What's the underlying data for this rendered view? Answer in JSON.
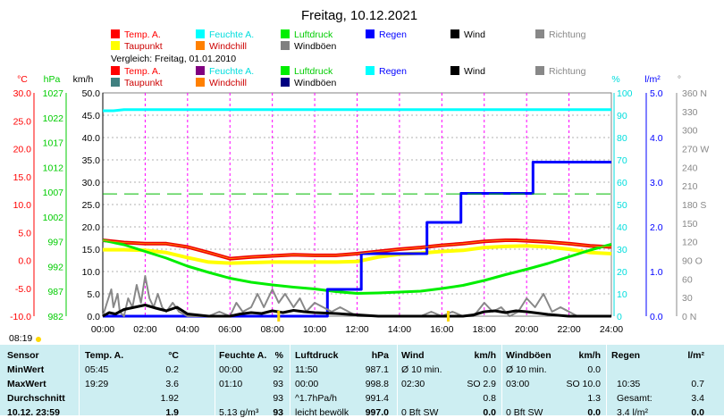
{
  "title": "Freitag, 10.12.2021",
  "legend_main": [
    {
      "label": "Temp. A.",
      "color": "#ff0000",
      "text_color": "#ff0000"
    },
    {
      "label": "Feuchte A.",
      "color": "#00ffff",
      "text_color": "#00dddd"
    },
    {
      "label": "Luftdruck",
      "color": "#00ee00",
      "text_color": "#00cc00"
    },
    {
      "label": "Regen",
      "color": "#0000ff",
      "text_color": "#0000ff"
    },
    {
      "label": "Wind",
      "color": "#000000",
      "text_color": "#000000"
    },
    {
      "label": "Richtung",
      "color": "#888888",
      "text_color": "#888888"
    },
    {
      "label": "Taupunkt",
      "color": "#ffff00",
      "text_color": "#cc0000"
    },
    {
      "label": "Windchill",
      "color": "#ff8000",
      "text_color": "#cc0000"
    },
    {
      "label": "Windböen",
      "color": "#808080",
      "text_color": "#000000"
    }
  ],
  "compare_label": "Vergleich: Freitag, 01.01.2010",
  "legend_compare": [
    {
      "label": "Temp. A.",
      "color": "#ff0000",
      "text_color": "#ff0000"
    },
    {
      "label": "Feuchte A.",
      "color": "#800080",
      "text_color": "#00dddd"
    },
    {
      "label": "Luftdruck",
      "color": "#00ee00",
      "text_color": "#00cc00"
    },
    {
      "label": "Regen",
      "color": "#00ffff",
      "text_color": "#0000ff"
    },
    {
      "label": "Wind",
      "color": "#000000",
      "text_color": "#000000"
    },
    {
      "label": "Richtung",
      "color": "#888888",
      "text_color": "#888888"
    },
    {
      "label": "Taupunkt",
      "color": "#408080",
      "text_color": "#cc0000"
    },
    {
      "label": "Windchill",
      "color": "#ff8000",
      "text_color": "#cc0000"
    },
    {
      "label": "Windböen",
      "color": "#000080",
      "text_color": "#000000"
    }
  ],
  "axis_units": {
    "temp": "°C",
    "hpa": "hPa",
    "kmh": "km/h",
    "pct": "%",
    "lm2": "l/m²",
    "deg": "°"
  },
  "time_marker": "08:19",
  "chart_data": {
    "type": "line",
    "x_ticks": [
      "00:00",
      "02:00",
      "04:00",
      "06:00",
      "08:00",
      "10:00",
      "12:00",
      "14:00",
      "16:00",
      "18:00",
      "20:00",
      "22:00",
      "24:00"
    ],
    "x_range": [
      0,
      24
    ],
    "temp_ticks": [
      "30.0",
      "25.0",
      "20.0",
      "15.0",
      "10.0",
      "5.0",
      "0.0",
      "-5.0",
      "-10.0"
    ],
    "temp_range": [
      -10,
      30
    ],
    "hpa_ticks": [
      "1027",
      "1022",
      "1017",
      "1012",
      "1007",
      "1002",
      "997",
      "992",
      "987",
      "982"
    ],
    "hpa_range": [
      982,
      1032
    ],
    "kmh_ticks": [
      "50.0",
      "45.0",
      "40.0",
      "35.0",
      "30.0",
      "25.0",
      "20.0",
      "15.0",
      "10.0",
      "5.0",
      "0.0"
    ],
    "kmh_range": [
      0,
      50
    ],
    "pct_ticks": [
      "100",
      "90",
      "80",
      "70",
      "60",
      "50",
      "40",
      "30",
      "20",
      "10",
      "0"
    ],
    "pct_range": [
      0,
      100
    ],
    "lm2_ticks": [
      "5.0",
      "4.0",
      "3.0",
      "2.0",
      "1.0",
      "0.0"
    ],
    "lm2_range": [
      0,
      5
    ],
    "deg_ticks": [
      "360 N",
      "330",
      "300",
      "270 W",
      "240",
      "210",
      "180 S",
      "150",
      "120",
      "90 O",
      "60",
      "30",
      "0 N"
    ],
    "deg_range": [
      0,
      360
    ],
    "series": [
      {
        "name": "Temp. A.",
        "axis": "temp",
        "color": "#ee0000",
        "width": 4,
        "x": [
          0,
          1,
          2,
          3,
          4,
          5,
          6,
          7,
          8,
          9,
          10,
          11,
          12,
          13,
          14,
          15,
          16,
          17,
          18,
          19,
          19.5,
          20,
          21,
          22,
          23,
          24
        ],
        "y": [
          3.6,
          3.2,
          3.0,
          3.0,
          2.4,
          1.4,
          0.3,
          0.6,
          0.8,
          1.0,
          0.9,
          0.9,
          1.2,
          1.6,
          2.0,
          2.3,
          2.7,
          3.0,
          3.4,
          3.6,
          3.6,
          3.5,
          3.3,
          3.0,
          2.6,
          2.4
        ]
      },
      {
        "name": "Taupunkt",
        "axis": "temp",
        "color": "#ffff00",
        "width": 4,
        "x": [
          0,
          1,
          2,
          3,
          4,
          5,
          6,
          7,
          8,
          9,
          10,
          11,
          12,
          13,
          14,
          15,
          16,
          17,
          18,
          19,
          20,
          21,
          22,
          23,
          24
        ],
        "y": [
          1.9,
          1.9,
          1.8,
          1.4,
          0.5,
          -0.3,
          -0.5,
          -0.4,
          -0.3,
          -0.3,
          -0.3,
          -0.3,
          -0.2,
          0.6,
          1.1,
          1.3,
          1.6,
          1.8,
          2.3,
          2.5,
          2.6,
          2.4,
          2.0,
          1.4,
          1.2
        ]
      },
      {
        "name": "Feuchte A.",
        "axis": "pct",
        "color": "#00ffff",
        "width": 3,
        "x": [
          0,
          0.5,
          1,
          2,
          4,
          6,
          8,
          10,
          12,
          14,
          16,
          18,
          20,
          22,
          24
        ],
        "y": [
          92,
          92,
          92.5,
          92.5,
          92.5,
          92.5,
          92.5,
          92.5,
          92.5,
          92.5,
          92.5,
          92.5,
          92.5,
          92.5,
          92.5
        ]
      },
      {
        "name": "Luftdruck",
        "axis": "hpa",
        "color": "#00ee00",
        "width": 3,
        "x": [
          0,
          1,
          2,
          3,
          4,
          5,
          6,
          7,
          8,
          9,
          10,
          11,
          12,
          13,
          14,
          15,
          16,
          17,
          18,
          19,
          20,
          21,
          22,
          23,
          24
        ],
        "y": [
          999.0,
          998.0,
          996.5,
          995.0,
          993.2,
          991.8,
          990.5,
          989.6,
          989.0,
          988.5,
          988.1,
          987.5,
          987.1,
          987.2,
          987.4,
          987.6,
          988.2,
          988.9,
          990.0,
          991.3,
          992.5,
          993.8,
          995.3,
          996.8,
          998.1
        ]
      },
      {
        "name": "Regen",
        "axis": "lm2",
        "color": "#0000ff",
        "width": 3,
        "step": true,
        "x": [
          0,
          10.6,
          10.6,
          12.2,
          12.2,
          15.3,
          15.3,
          16.9,
          16.9,
          18.0,
          18.0,
          20.3,
          20.3,
          24
        ],
        "y": [
          0,
          0,
          0.6,
          0.6,
          1.4,
          1.4,
          2.1,
          2.1,
          2.75,
          2.75,
          2.75,
          2.75,
          3.45,
          3.45
        ]
      },
      {
        "name": "Windböen",
        "axis": "kmh",
        "color": "#888888",
        "width": 2,
        "x": [
          0,
          0.2,
          0.4,
          0.5,
          0.7,
          0.8,
          1.0,
          1.2,
          1.4,
          1.6,
          1.8,
          2.0,
          2.2,
          2.4,
          2.6,
          2.8,
          3.0,
          3.3,
          3.6,
          4.0,
          4.5,
          5.0,
          5.5,
          6.0,
          6.3,
          6.6,
          7.0,
          7.3,
          7.6,
          8.0,
          8.3,
          8.6,
          9.0,
          9.3,
          9.6,
          10.0,
          10.4,
          10.8,
          11.2,
          11.6,
          12.0,
          12.5,
          13.0,
          13.5,
          14.0,
          14.5,
          15.0,
          15.5,
          16.0,
          16.5,
          17.0,
          17.5,
          18.0,
          18.4,
          18.8,
          19.2,
          19.6,
          20.0,
          20.4,
          20.8,
          21.2,
          21.6,
          22.0,
          22.4,
          22.8,
          23.2,
          23.6,
          24
        ],
        "y": [
          0,
          3,
          6,
          2,
          5,
          1,
          0,
          4,
          2,
          7,
          3,
          9,
          4,
          2,
          5,
          2,
          1,
          3,
          1,
          0,
          0,
          0,
          1,
          0,
          3,
          1,
          2,
          5,
          2,
          6,
          3,
          5,
          2,
          4,
          1,
          3,
          2,
          1,
          2,
          1,
          0,
          0,
          0,
          0,
          0,
          0,
          0,
          1,
          0,
          1,
          0,
          0,
          3,
          1,
          2,
          0,
          1,
          4,
          2,
          5,
          1,
          2,
          1,
          0,
          0,
          0,
          0,
          0
        ]
      },
      {
        "name": "Wind",
        "axis": "kmh",
        "color": "#000000",
        "width": 3,
        "x": [
          0,
          0.3,
          0.6,
          1,
          1.5,
          2,
          2.5,
          3,
          3.5,
          4,
          5,
          6,
          6.5,
          7,
          7.5,
          8,
          8.5,
          9,
          9.5,
          10,
          11,
          12,
          13,
          14,
          15,
          16,
          17,
          17.5,
          18,
          18.5,
          19,
          19.5,
          20,
          21,
          22,
          23,
          24
        ],
        "y": [
          0,
          0.8,
          0.5,
          1.5,
          2.0,
          2.5,
          1.8,
          1.2,
          2.0,
          0.5,
          0,
          0,
          0.5,
          0.8,
          0.6,
          1.2,
          0.8,
          1.3,
          1.0,
          0.8,
          0.6,
          0.3,
          0,
          0,
          0,
          0,
          0,
          0.3,
          1.0,
          1.2,
          0.8,
          1.2,
          1.0,
          0.4,
          0,
          0,
          0
        ]
      },
      {
        "name": "Windchill",
        "axis": "temp",
        "color": "#ff8000",
        "width": 1,
        "x": [
          0,
          1,
          2,
          3,
          4,
          5,
          6,
          7,
          8,
          9,
          10,
          11,
          12,
          13,
          14,
          15,
          16,
          17,
          18,
          19,
          20,
          21,
          22,
          23,
          24
        ],
        "y": [
          3.6,
          3.2,
          3.0,
          3.0,
          2.4,
          1.4,
          0.3,
          0.6,
          0.8,
          1.0,
          0.9,
          0.9,
          1.2,
          1.6,
          2.0,
          2.3,
          2.7,
          3.0,
          3.4,
          3.6,
          3.5,
          3.3,
          3.0,
          2.6,
          2.4
        ]
      },
      {
        "name": "Vergleich Temp. A.",
        "axis": "temp",
        "color": "#00bb00",
        "width": 1,
        "dash": "16,8",
        "x": [
          0,
          24
        ],
        "y": [
          11.9,
          11.9
        ]
      }
    ]
  },
  "table": {
    "headers": [
      "Sensor",
      "Temp. A.",
      "°C",
      "Feuchte A.",
      "%",
      "Luftdruck",
      "hPa",
      "Wind",
      "km/h",
      "Windböen",
      "km/h",
      "Regen",
      "l/m²"
    ],
    "rows": [
      {
        "label": "MinWert",
        "temp_time": "05:45",
        "temp": "0.2",
        "hum_time": "00:00",
        "hum": "92",
        "baro_time": "11:50",
        "baro": "987.1",
        "wind_time": "Ø 10 min.",
        "wind": "0.0",
        "gust_time": "Ø 10 min.",
        "gust": "0.0",
        "rain_time": "",
        "rain": ""
      },
      {
        "label": "MaxWert",
        "temp_time": "19:29",
        "temp": "3.6",
        "hum_time": "01:10",
        "hum": "93",
        "baro_time": "00:00",
        "baro": "998.8",
        "wind_time": "02:30",
        "wind": "SO 2.9",
        "gust_time": "03:00",
        "gust": "SO 10.0",
        "rain_time": "10:35",
        "rain": "0.7"
      },
      {
        "label": "Durchschnitt",
        "temp_time": "",
        "temp": "1.92",
        "hum_time": "",
        "hum": "93",
        "baro_time": "^1.7hPa/h",
        "baro": "991.4",
        "wind_time": "",
        "wind": "0.8",
        "gust_time": "",
        "gust": "1.3",
        "rain_time": "Gesamt:",
        "rain": "3.4"
      },
      {
        "label": "10.12. 23:59",
        "temp_time": "",
        "temp": "1.9",
        "hum_time": "5.13 g/m³",
        "hum": "93",
        "baro_time": "leicht bewölk",
        "baro": "997.0",
        "wind_time": "0 Bft SW",
        "wind": "0.0",
        "gust_time": "0 Bft SW",
        "gust": "0.0",
        "rain_time": "3.4 l/m²",
        "rain": "0.0"
      }
    ]
  }
}
